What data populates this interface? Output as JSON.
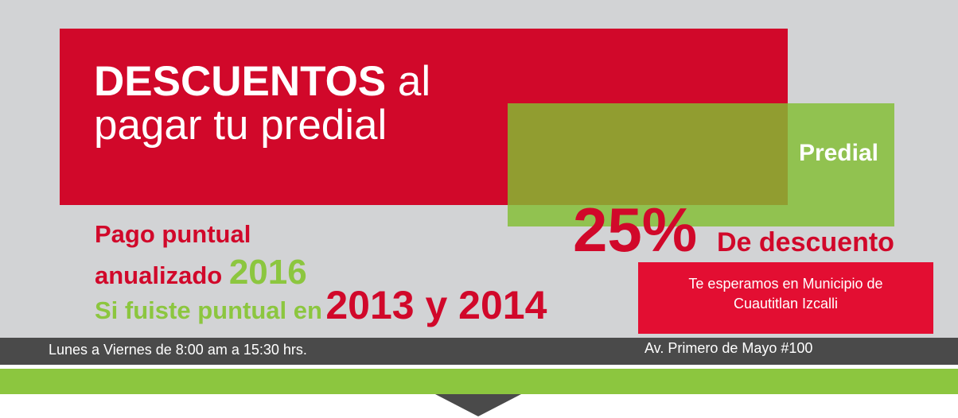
{
  "colors": {
    "red": "#d1082a",
    "green": "#8cc63f",
    "gray": "#d2d3d5",
    "dark": "#4a4a4a"
  },
  "headline": {
    "bold": "DESCUENTOS",
    "normal": "al",
    "line2": "pagar tu predial"
  },
  "predial_label": "Predial",
  "discount": {
    "percent": "25%",
    "text": "De descuento"
  },
  "pago": {
    "line1": "Pago puntual",
    "line2": "anualizado",
    "year": "2016"
  },
  "puntual": {
    "text": "Si fuiste puntual en",
    "years": "2013 y 2014"
  },
  "info": {
    "line1": "Te esperamos en Municipio de",
    "line2": "Cuautitlan Izcalli"
  },
  "footer": {
    "hours": "Lunes a Viernes de 8:00 am a 15:30 hrs.",
    "address": "Av. Primero de Mayo #100"
  }
}
